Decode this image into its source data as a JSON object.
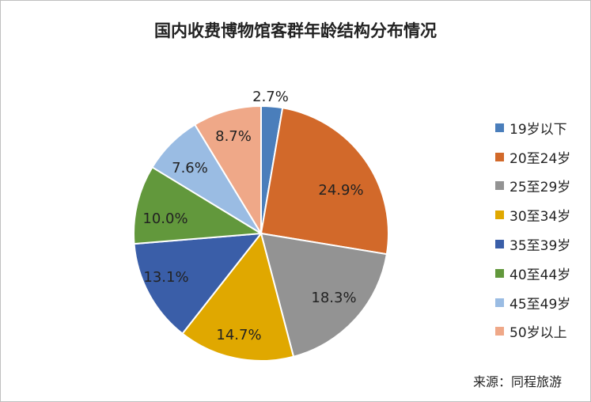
{
  "chart_data": {
    "type": "pie",
    "title": "国内收费博物馆客群年龄结构分布情况",
    "slices": [
      {
        "label": "19岁以下",
        "value": 2.7,
        "display": "2.7%",
        "color": "#4a7ebb"
      },
      {
        "label": "20至24岁",
        "value": 24.9,
        "display": "24.9%",
        "color": "#d2692a"
      },
      {
        "label": "25至29岁",
        "value": 18.3,
        "display": "18.3%",
        "color": "#939393"
      },
      {
        "label": "30至34岁",
        "value": 14.7,
        "display": "14.7%",
        "color": "#e0a800"
      },
      {
        "label": "35至39岁",
        "value": 13.1,
        "display": "13.1%",
        "color": "#3a5ea8"
      },
      {
        "label": "40至44岁",
        "value": 10.0,
        "display": "10.0%",
        "color": "#62983c"
      },
      {
        "label": "45至49岁",
        "value": 7.6,
        "display": "7.6%",
        "color": "#9abce3"
      },
      {
        "label": "50岁以上",
        "value": 8.7,
        "display": "8.7%",
        "color": "#efa888"
      }
    ],
    "legend_position": "right",
    "start_angle": "12 o'clock",
    "direction": "clockwise"
  },
  "source": "来源：同程旅游"
}
